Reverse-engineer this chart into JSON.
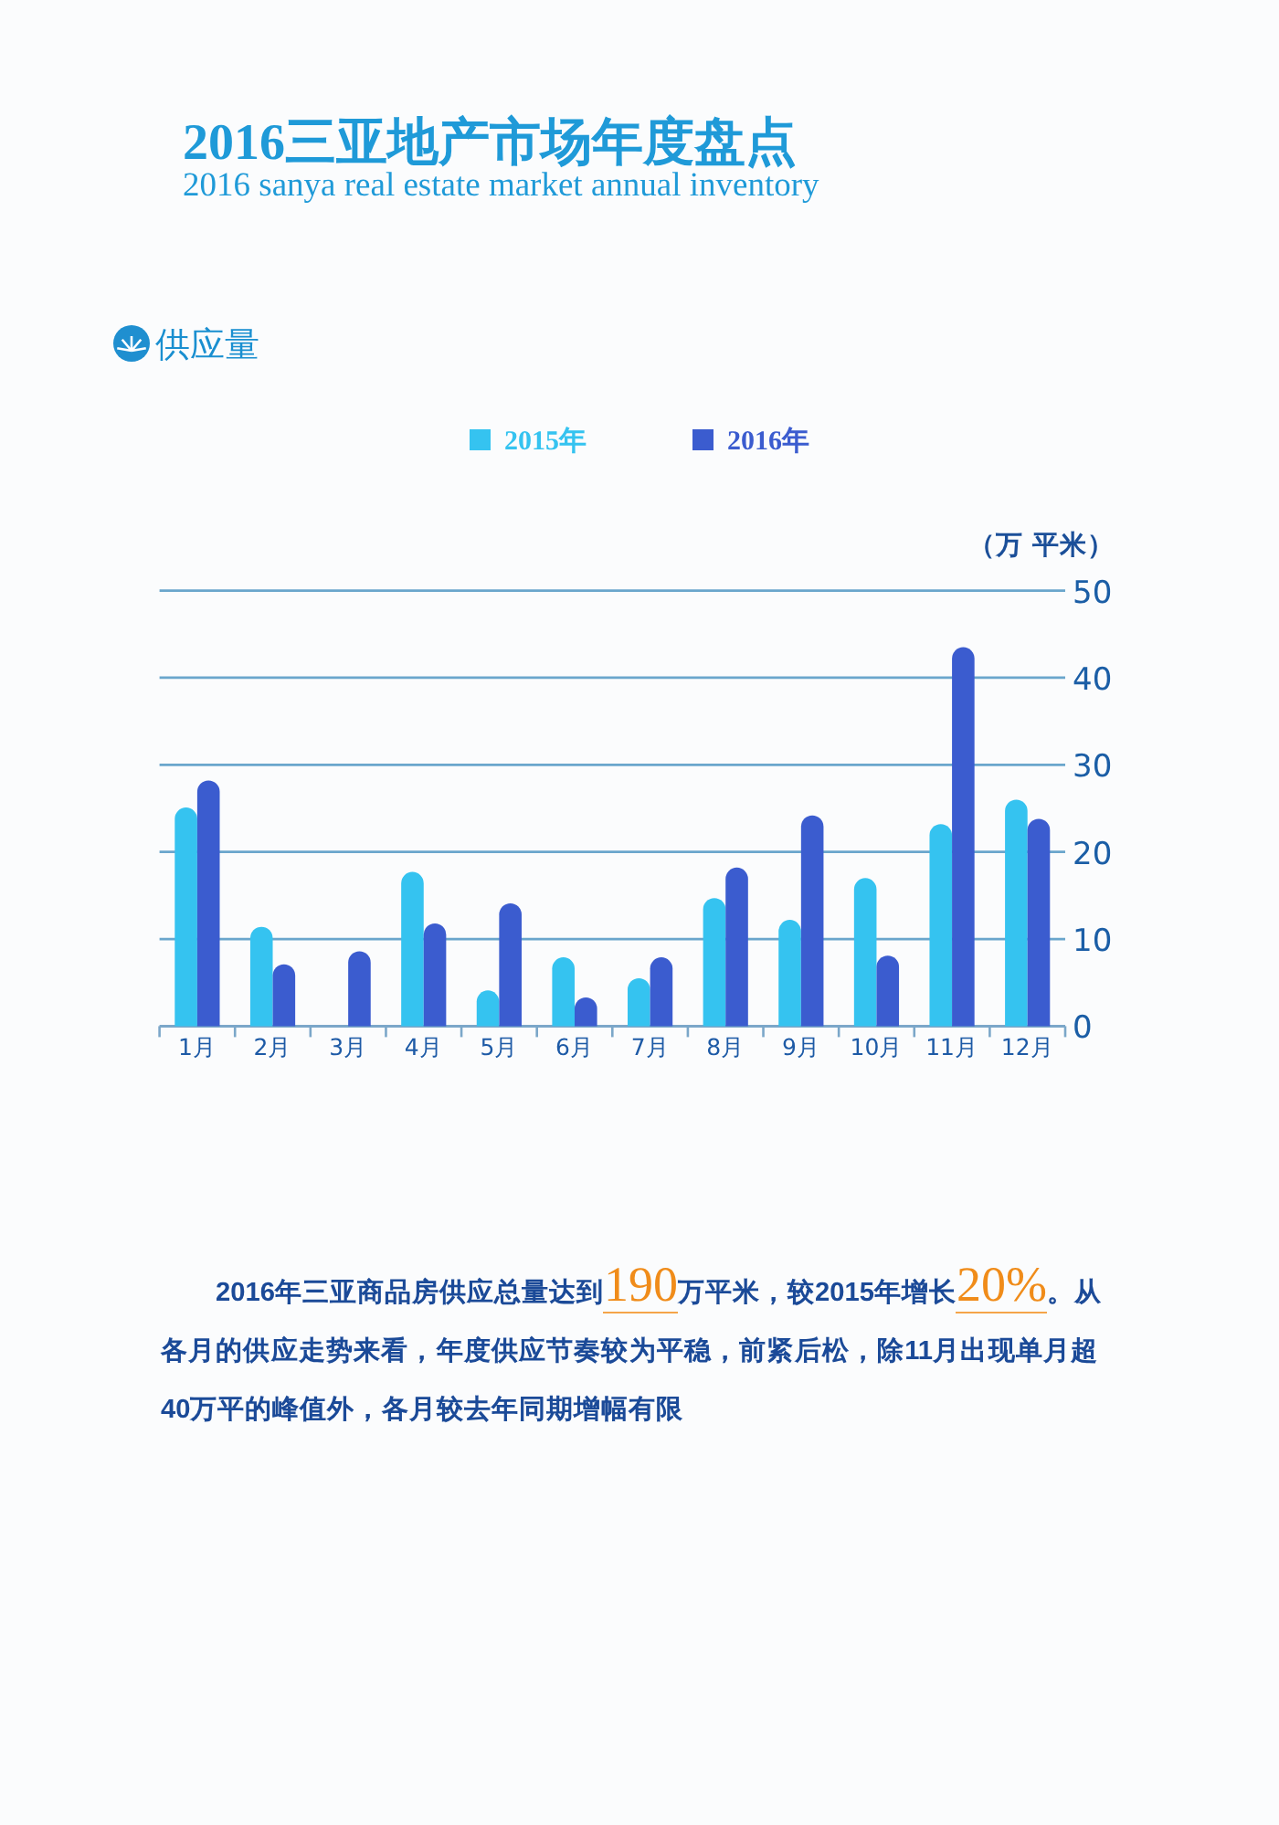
{
  "chart_data": {
    "type": "bar",
    "title": "2016三亚地产市场年度盘点",
    "subtitle": "2016 sanya real estate market annual inventory",
    "ylabel": "（万 平米）",
    "categories": [
      "1月",
      "2月",
      "3月",
      "4月",
      "5月",
      "6月",
      "7月",
      "8月",
      "9月",
      "10月",
      "11月",
      "12月"
    ],
    "series": [
      {
        "name": "2015年",
        "color": "#35c3f0",
        "values": [
          25.1,
          11.4,
          null,
          17.7,
          4.1,
          7.9,
          5.5,
          14.7,
          12.2,
          17.0,
          23.2,
          26.0
        ]
      },
      {
        "name": "2016年",
        "color": "#3b5ccf",
        "values": [
          28.2,
          7.1,
          8.6,
          11.8,
          14.1,
          3.3,
          7.9,
          18.2,
          24.2,
          8.1,
          43.5,
          23.8
        ]
      }
    ],
    "ylim": [
      0,
      50
    ],
    "yticks": [
      0,
      10,
      20,
      30,
      40,
      50
    ],
    "grid": "y",
    "legend": "top",
    "annotations": [
      "供应量",
      "2016年三亚商品房供应总量达到",
      "190",
      "万平米，较2015年增长",
      "20%",
      "。从",
      "各月的供应走势来看，年度供应节奏较为平稳，前紧后松，除11月出现单月超40万平的峰值外，各月较去年同期增幅有限"
    ]
  }
}
